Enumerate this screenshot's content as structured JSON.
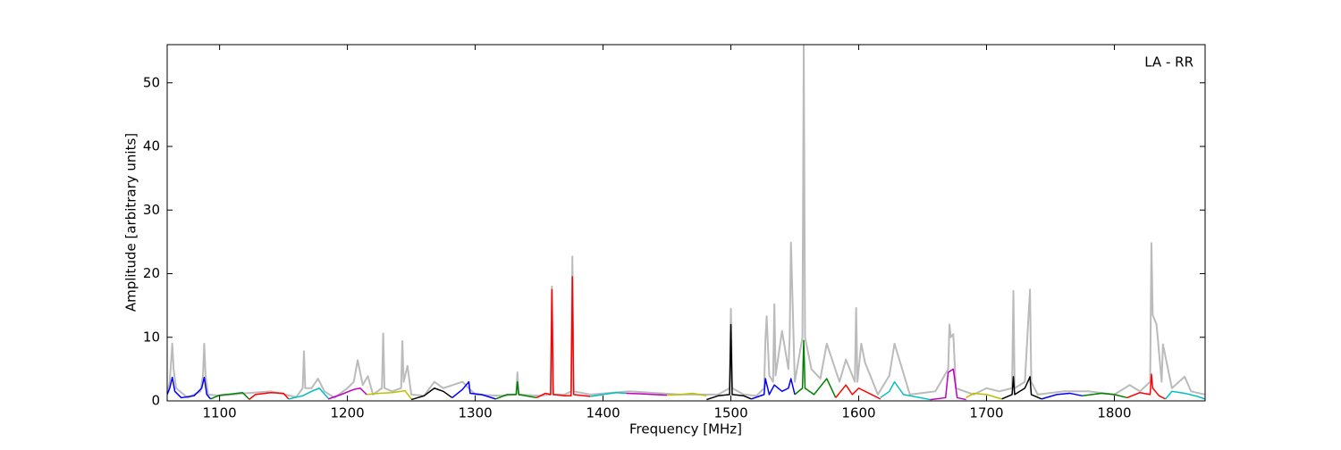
{
  "chart_data": {
    "type": "line",
    "annotation": "LA - RR",
    "xlabel": "Frequency [MHz]",
    "ylabel": "Amplitude [arbitrary units]",
    "xlim": [
      1059,
      1871
    ],
    "ylim": [
      0,
      56
    ],
    "xticks": [
      1100,
      1200,
      1300,
      1400,
      1500,
      1600,
      1700,
      1800
    ],
    "yticks": [
      0,
      10,
      20,
      30,
      40,
      50
    ],
    "series": [
      {
        "color": "#bbbbbb",
        "x": [
          1059,
          1061,
          1062,
          1063,
          1064,
          1066,
          1075,
          1085,
          1087,
          1088,
          1089,
          1091,
          1100,
          1120,
          1140,
          1160,
          1165,
          1166,
          1167,
          1172,
          1177,
          1182,
          1190,
          1200,
          1205,
          1208,
          1212,
          1216,
          1220,
          1227,
          1228,
          1229,
          1235,
          1242,
          1243,
          1244,
          1247,
          1250,
          1260,
          1268,
          1275,
          1290,
          1300,
          1320,
          1332,
          1333,
          1334,
          1350,
          1359,
          1360,
          1361,
          1370,
          1375,
          1376,
          1377,
          1390,
          1420,
          1460,
          1490,
          1499,
          1500,
          1501,
          1510,
          1520,
          1526,
          1527,
          1528,
          1530,
          1533,
          1534,
          1535,
          1540,
          1545,
          1546,
          1547,
          1550,
          1556,
          1557,
          1558,
          1563,
          1570,
          1575,
          1585,
          1590,
          1597,
          1598,
          1599,
          1602,
          1605,
          1615,
          1624,
          1628,
          1640,
          1660,
          1670,
          1671,
          1672,
          1674,
          1676,
          1690,
          1700,
          1710,
          1720,
          1721,
          1722,
          1730,
          1734,
          1735,
          1740,
          1760,
          1780,
          1800,
          1812,
          1820,
          1828,
          1829,
          1830,
          1833,
          1837,
          1838,
          1845,
          1855,
          1860,
          1871
        ],
        "values": [
          1,
          3,
          6,
          9,
          5,
          2,
          0.5,
          1.5,
          4,
          9,
          4,
          1,
          0.8,
          1.2,
          1.5,
          0.6,
          2,
          7.8,
          2,
          2,
          3.5,
          1.5,
          0.5,
          2,
          3,
          6.4,
          2.5,
          3.9,
          1,
          2,
          10.6,
          2,
          1.5,
          2,
          9.4,
          3,
          5.5,
          1,
          0.8,
          3,
          2,
          3,
          1,
          0.8,
          1,
          4.5,
          1,
          0.8,
          1,
          18,
          1,
          1,
          1.5,
          22.7,
          1.5,
          1,
          1.5,
          1,
          1,
          2,
          14.5,
          2,
          1,
          0.8,
          2,
          9.5,
          13.3,
          4,
          3,
          15.2,
          4,
          11,
          5,
          10,
          24.9,
          3,
          10,
          56,
          10,
          5,
          3.5,
          9,
          3,
          6.5,
          3,
          14.6,
          3,
          9,
          6,
          1,
          4,
          9,
          1,
          1.5,
          5,
          12,
          10,
          10.5,
          2,
          1,
          2,
          1.5,
          2,
          17.3,
          2,
          3,
          17.5,
          3,
          1,
          1.5,
          1.5,
          1,
          2.5,
          1.5,
          3,
          24.8,
          13.5,
          12,
          3,
          8.9,
          2,
          3.8,
          1.5,
          1
        ]
      },
      {
        "color": "#0000ff",
        "x": [
          1059,
          1061,
          1063,
          1065,
          1070,
          1080,
          1086,
          1088,
          1090,
          1093
        ],
        "values": [
          1,
          2,
          3.7,
          1.5,
          0.5,
          0.8,
          2,
          3.7,
          1,
          0.3
        ]
      },
      {
        "color": "#008000",
        "x": [
          1093,
          1100,
          1110,
          1118,
          1123
        ],
        "values": [
          0.3,
          0.9,
          1.1,
          1.3,
          0.3
        ]
      },
      {
        "color": "#ff0000",
        "x": [
          1123,
          1128,
          1140,
          1150,
          1154
        ],
        "values": [
          0.2,
          1,
          1.3,
          1.2,
          0.3
        ]
      },
      {
        "color": "#00bfbf",
        "x": [
          1154,
          1165,
          1172,
          1178,
          1185
        ],
        "values": [
          0.3,
          0.8,
          1.5,
          2,
          0.4
        ]
      },
      {
        "color": "#bf00bf",
        "x": [
          1185,
          1195,
          1205,
          1210,
          1215
        ],
        "values": [
          0.3,
          1,
          1.8,
          2,
          1
        ]
      },
      {
        "color": "#bfbf00",
        "x": [
          1215,
          1225,
          1235,
          1245,
          1250
        ],
        "values": [
          1,
          1.2,
          1.3,
          1.6,
          0.3
        ]
      },
      {
        "color": "#000000",
        "x": [
          1250,
          1260,
          1268,
          1275,
          1282
        ],
        "values": [
          0.2,
          0.8,
          2,
          1.5,
          0.5
        ]
      },
      {
        "color": "#0000ff",
        "x": [
          1282,
          1290,
          1295,
          1296,
          1305,
          1316
        ],
        "values": [
          0.5,
          1.8,
          3,
          1.2,
          1,
          0.3
        ]
      },
      {
        "color": "#008000",
        "x": [
          1316,
          1325,
          1332,
          1333,
          1334,
          1348
        ],
        "values": [
          0.3,
          1,
          1,
          3,
          1,
          0.5
        ]
      },
      {
        "color": "#ff0000",
        "x": [
          1348,
          1355,
          1359,
          1360,
          1361,
          1370,
          1375,
          1376,
          1377,
          1390
        ],
        "values": [
          0.5,
          1.2,
          1,
          17.5,
          1,
          0.8,
          0.8,
          19.5,
          1,
          0.7
        ]
      },
      {
        "color": "#00bfbf",
        "x": [
          1390,
          1400,
          1410,
          1418
        ],
        "values": [
          0.7,
          1,
          1.3,
          1.2
        ]
      },
      {
        "color": "#bf00bf",
        "x": [
          1418,
          1430,
          1440,
          1450
        ],
        "values": [
          1.2,
          1.1,
          1,
          0.9
        ]
      },
      {
        "color": "#bfbf00",
        "x": [
          1450,
          1460,
          1470,
          1481
        ],
        "values": [
          0.9,
          1,
          1.2,
          0.8
        ]
      },
      {
        "color": "#000000",
        "x": [
          1481,
          1490,
          1499,
          1500,
          1501,
          1510,
          1516
        ],
        "values": [
          0.2,
          0.8,
          1,
          12,
          1,
          0.8,
          0.3
        ]
      },
      {
        "color": "#0000ff",
        "x": [
          1516,
          1526,
          1527,
          1530,
          1534,
          1540,
          1545,
          1547,
          1550
        ],
        "values": [
          0.3,
          1,
          3.5,
          1,
          2.5,
          1.5,
          2,
          3.5,
          1
        ]
      },
      {
        "color": "#008000",
        "x": [
          1550,
          1556,
          1557,
          1558,
          1565,
          1575,
          1582
        ],
        "values": [
          1,
          2,
          9.5,
          2,
          1,
          3.5,
          0.5
        ]
      },
      {
        "color": "#ff0000",
        "x": [
          1582,
          1590,
          1595,
          1600,
          1605,
          1617
        ],
        "values": [
          0.5,
          2.5,
          1,
          2,
          1.5,
          0.3
        ]
      },
      {
        "color": "#00bfbf",
        "x": [
          1617,
          1624,
          1628,
          1635,
          1656
        ],
        "values": [
          0.5,
          1.5,
          3,
          1,
          0.2
        ]
      },
      {
        "color": "#bf00bf",
        "x": [
          1656,
          1668,
          1670,
          1674,
          1677,
          1684
        ],
        "values": [
          0.2,
          0.5,
          4.5,
          5,
          0.5,
          0.2
        ]
      },
      {
        "color": "#bfbf00",
        "x": [
          1684,
          1690,
          1700,
          1712
        ],
        "values": [
          0.5,
          1.2,
          1,
          0.3
        ]
      },
      {
        "color": "#000000",
        "x": [
          1712,
          1720,
          1721,
          1722,
          1730,
          1734,
          1735,
          1743
        ],
        "values": [
          0.3,
          1,
          3.8,
          1,
          2,
          3.8,
          1,
          0.3
        ]
      },
      {
        "color": "#0000ff",
        "x": [
          1743,
          1755,
          1765,
          1775
        ],
        "values": [
          0.3,
          1,
          1.2,
          0.8
        ]
      },
      {
        "color": "#008000",
        "x": [
          1775,
          1790,
          1800,
          1810
        ],
        "values": [
          0.8,
          1.2,
          1,
          0.5
        ]
      },
      {
        "color": "#ff0000",
        "x": [
          1810,
          1820,
          1828,
          1829,
          1830,
          1835,
          1840
        ],
        "values": [
          0.5,
          1.3,
          1,
          4.2,
          2,
          0.8,
          0.3
        ]
      },
      {
        "color": "#00bfbf",
        "x": [
          1840,
          1845,
          1855,
          1865,
          1871
        ],
        "values": [
          0.3,
          1.5,
          1.2,
          0.7,
          0.3
        ]
      }
    ]
  }
}
